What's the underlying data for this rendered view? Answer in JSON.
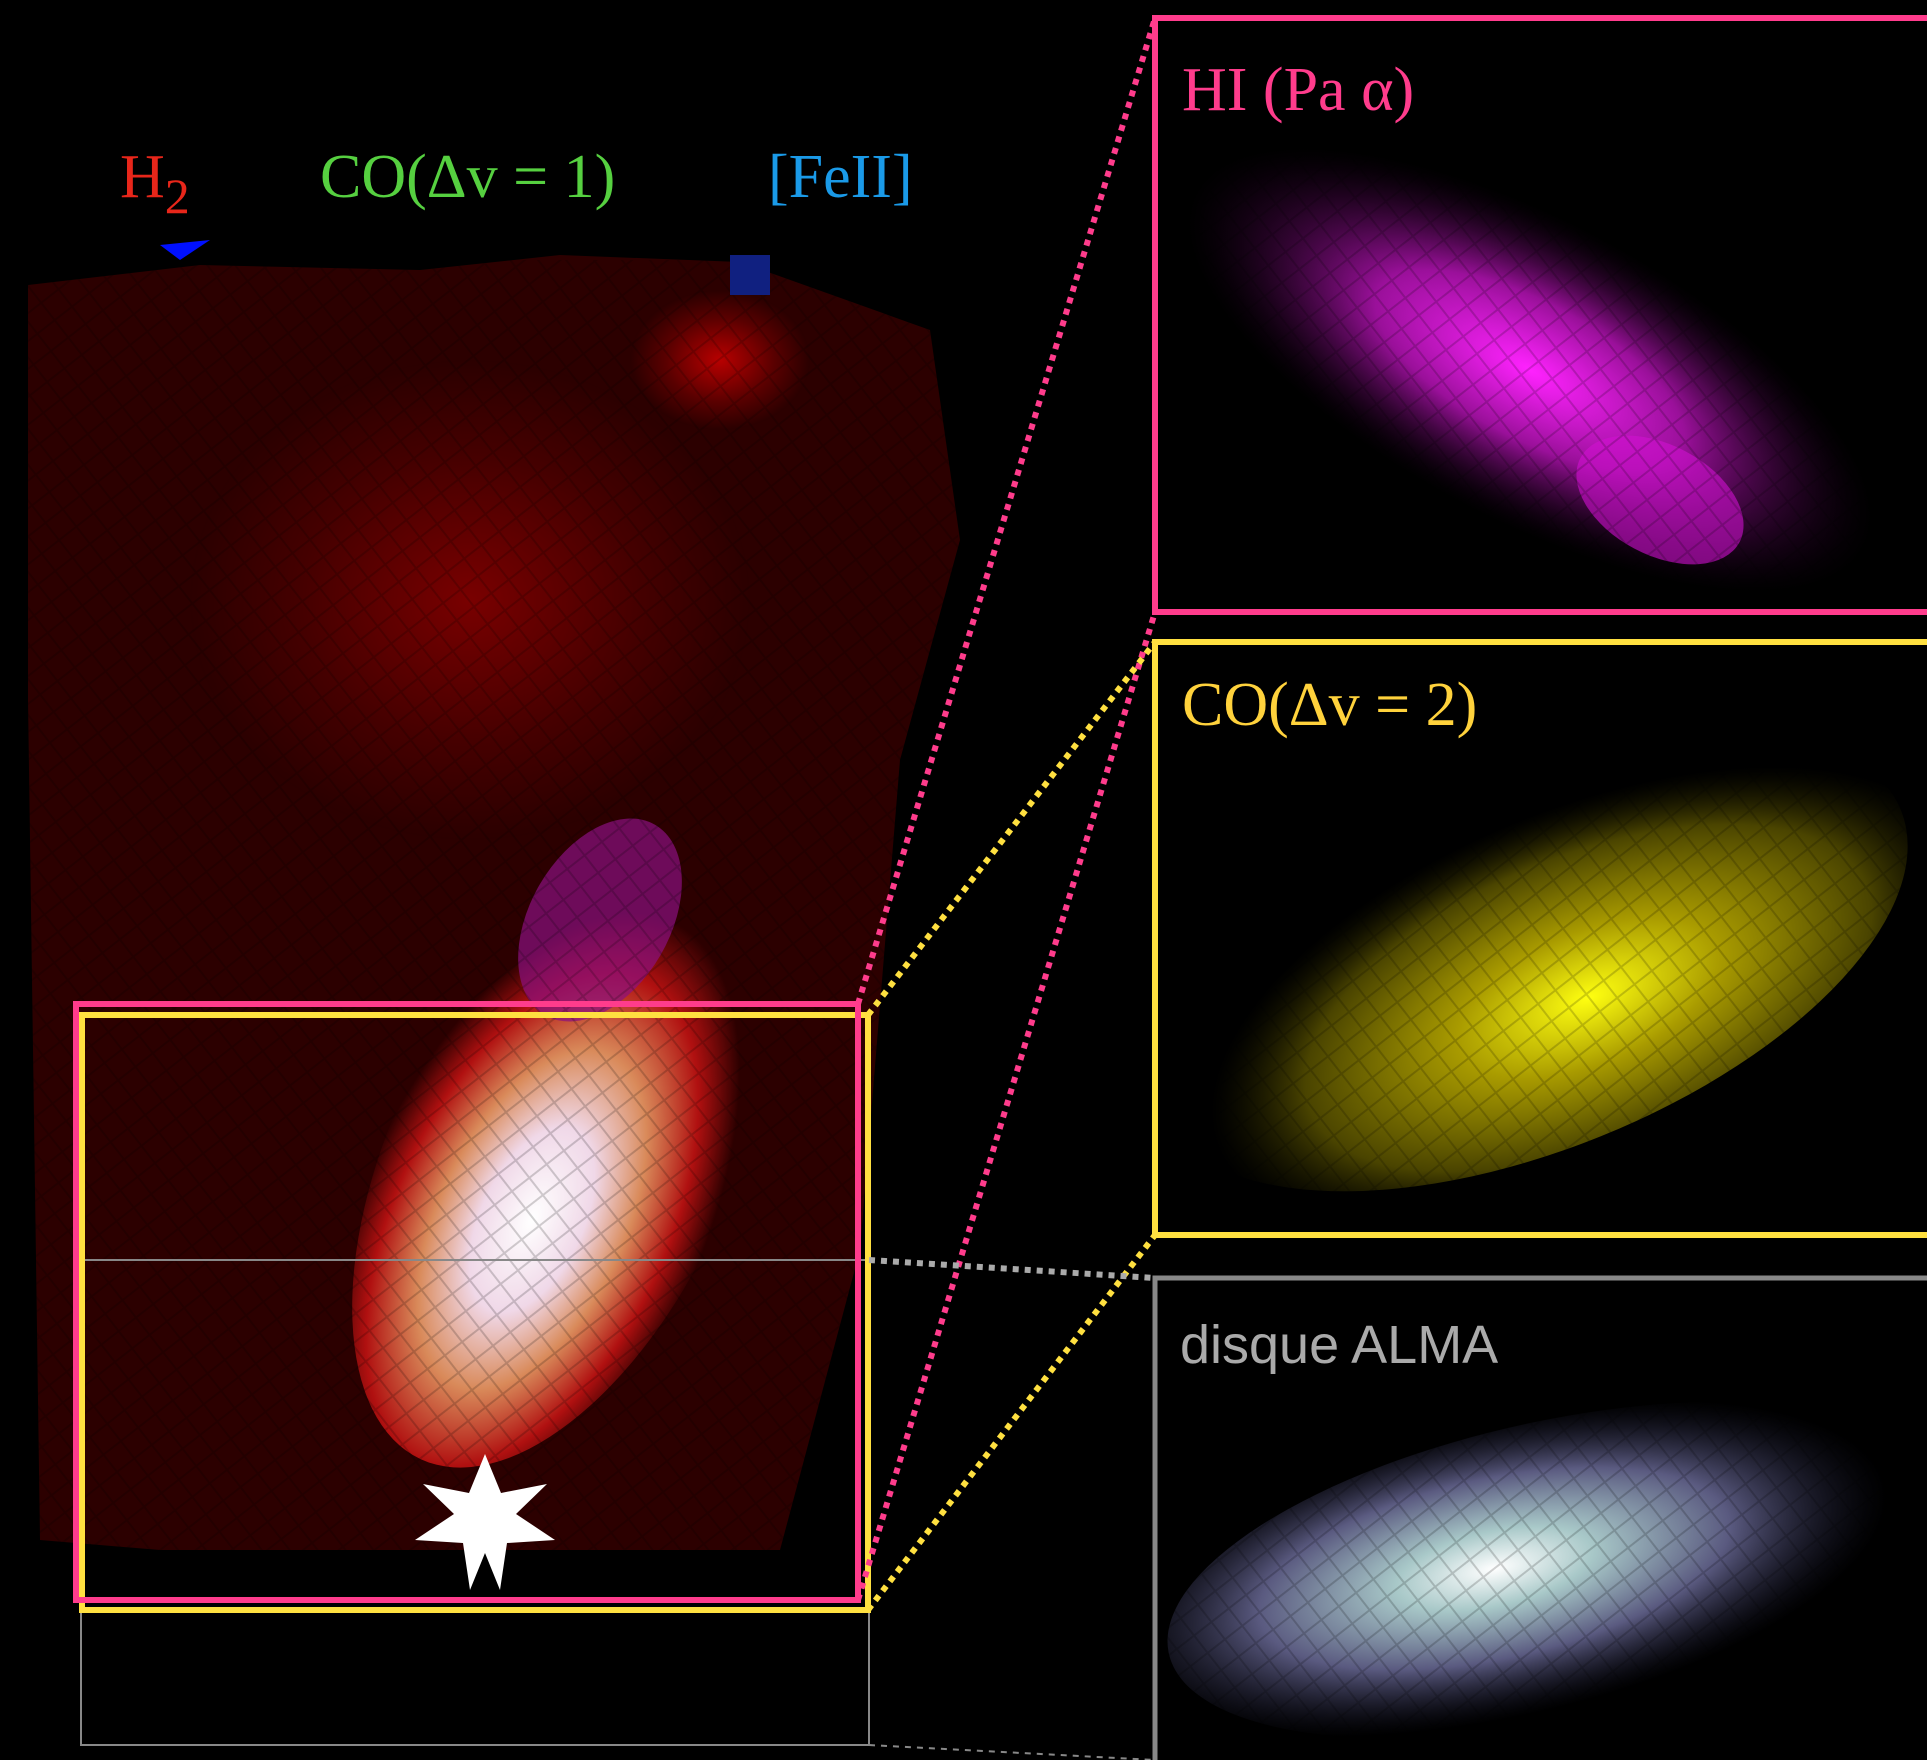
{
  "legend": {
    "h2": {
      "base": "H",
      "sub": "2"
    },
    "co1": "CO(Δv = 1)",
    "feii": "[FeII]"
  },
  "panels": [
    {
      "label": "HI (Pa α)"
    },
    {
      "label": "CO(Δv = 2)"
    },
    {
      "label": "disque ALMA"
    }
  ]
}
